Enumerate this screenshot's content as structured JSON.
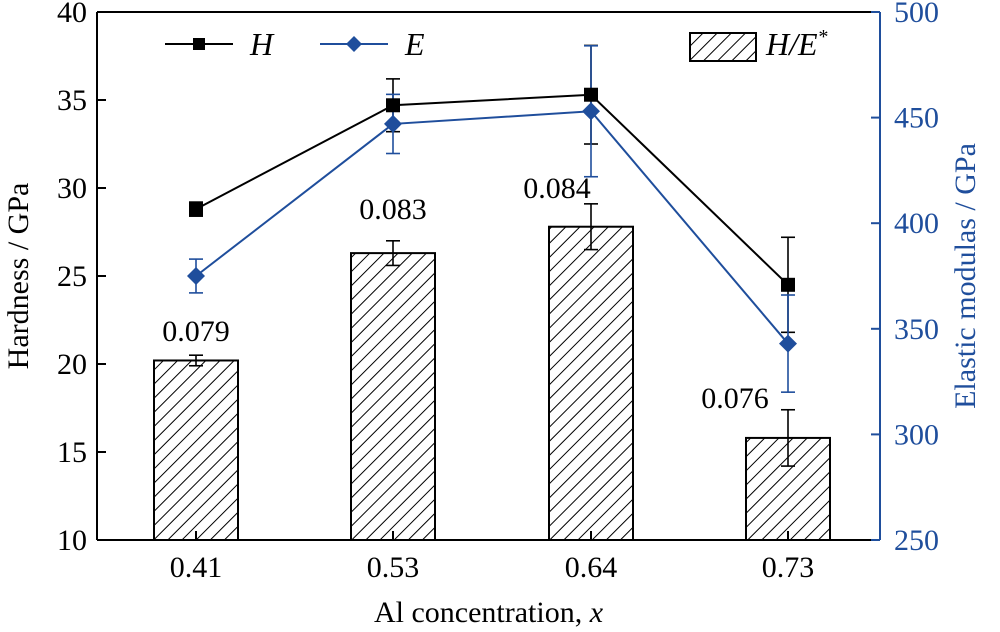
{
  "chart_data": {
    "type": "bar",
    "xlabel": "Al concentration, x",
    "xlabel_main": "Al concentration, ",
    "xlabel_var": "x",
    "ylabel": "Hardness / GPa",
    "ylabel_right": "Elastic modulas / GPa",
    "categories": [
      "0.41",
      "0.53",
      "0.64",
      "0.73"
    ],
    "ylim": [
      10,
      40
    ],
    "yticks": [
      10,
      15,
      20,
      25,
      30,
      35,
      40
    ],
    "ylim_right": [
      250,
      500
    ],
    "yticks_right": [
      250,
      300,
      350,
      400,
      450,
      500
    ],
    "series": [
      {
        "name": "H/E*",
        "type": "bar",
        "axis": "left",
        "values": [
          20.2,
          26.3,
          27.8,
          15.8
        ],
        "errors": [
          0.3,
          0.7,
          1.3,
          1.6
        ],
        "labels": [
          "0.079",
          "0.083",
          "0.084",
          "0.076"
        ]
      },
      {
        "name": "H",
        "type": "line",
        "axis": "left",
        "marker": "square",
        "color": "#000000",
        "values": [
          28.8,
          34.7,
          35.3,
          24.5
        ],
        "errors": [
          0.4,
          1.5,
          2.8,
          2.7
        ]
      },
      {
        "name": "E",
        "type": "line",
        "axis": "right",
        "marker": "diamond",
        "color": "#1f4e9c",
        "values": [
          375,
          447,
          453,
          343
        ],
        "errors": [
          8,
          14,
          31,
          23
        ]
      }
    ],
    "legend": {
      "position": "top",
      "items": [
        {
          "label": "H"
        },
        {
          "label": "E"
        },
        {
          "label_main": "H/E",
          "label_sup": "*"
        }
      ]
    },
    "colors": {
      "left_axis": "#000000",
      "right_axis": "#1f4e9c"
    }
  }
}
